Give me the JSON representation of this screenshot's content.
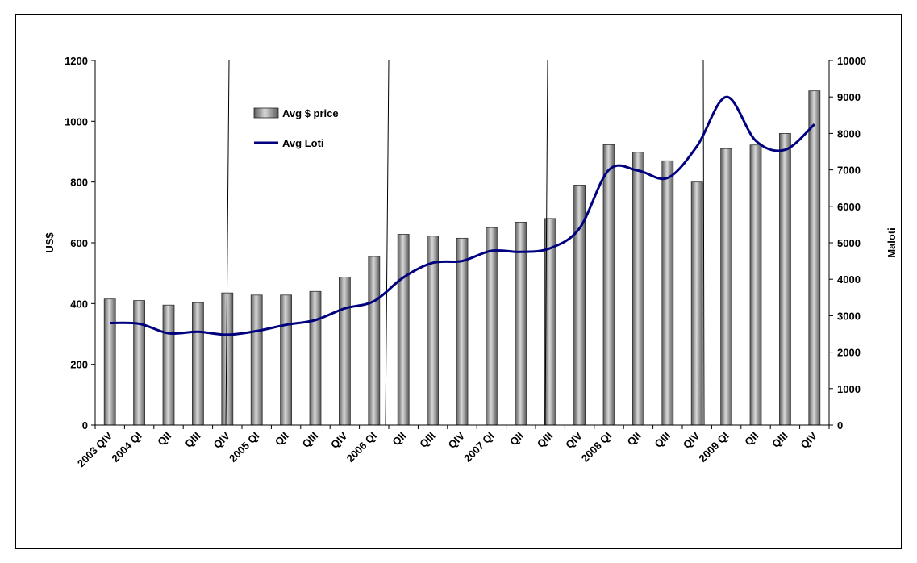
{
  "chart_data": {
    "type": "bar+line",
    "categories": [
      "2003 QIV",
      "2004 QI",
      "QII",
      "QIII",
      "QIV",
      "2005 QI",
      "QII",
      "QIII",
      "QIV",
      "2006 QI",
      "QII",
      "QIII",
      "QIV",
      "2007 QI",
      "QII",
      "QIII",
      "QIV",
      "2008 QI",
      "QII",
      "QIII",
      "QIV",
      "2009 QI",
      "QII",
      "QIII",
      "QIV"
    ],
    "series": [
      {
        "name": "Avg $ price",
        "type": "bar",
        "axis": "left",
        "values": [
          415,
          410,
          395,
          403,
          435,
          428,
          428,
          440,
          487,
          555,
          628,
          622,
          615,
          650,
          668,
          680,
          790,
          923,
          898,
          870,
          800,
          910,
          922,
          960,
          1100
        ]
      },
      {
        "name": "Avg Loti",
        "type": "line",
        "axis": "right",
        "values": [
          2800,
          2780,
          2520,
          2560,
          2480,
          2580,
          2750,
          2880,
          3200,
          3400,
          4050,
          4450,
          4500,
          4780,
          4750,
          4850,
          5400,
          7000,
          6980,
          6780,
          7650,
          9000,
          7800,
          7550,
          8250
        ]
      }
    ],
    "ylabel": "US$",
    "ylabel_right": "Maloti",
    "ylim": [
      0,
      1200
    ],
    "ylim_right": [
      0,
      10000
    ],
    "yticks": [
      "0",
      "200",
      "400",
      "600",
      "800",
      "1000",
      "1200"
    ],
    "yticks_right": [
      "0",
      "1000",
      "2000",
      "3000",
      "4000",
      "5000",
      "6000",
      "7000",
      "8000",
      "9000",
      "10000"
    ],
    "legend_placement": "top-left",
    "grid": false,
    "colors": {
      "bar": "#8c8c8c",
      "line": "#00007f",
      "divider": "#000000"
    }
  }
}
